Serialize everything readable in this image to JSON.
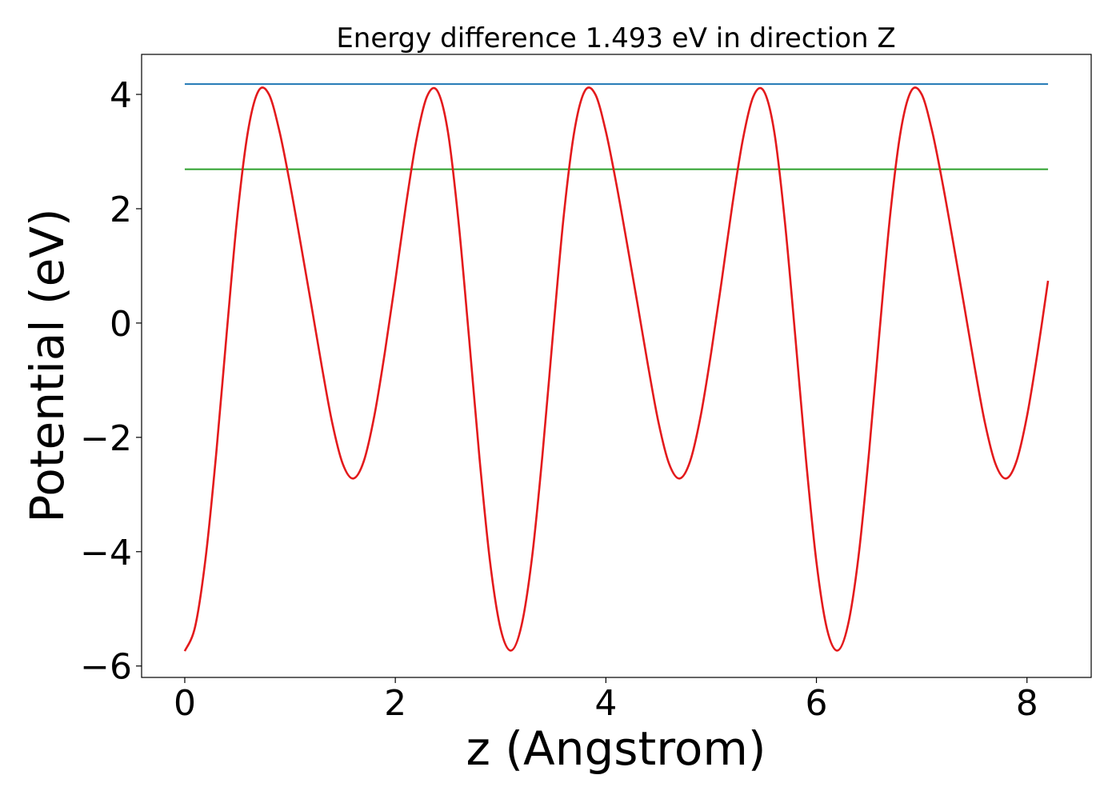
{
  "chart_data": {
    "type": "line",
    "title": "Energy difference 1.493 eV in direction Z",
    "xlabel": "z (Angstrom)",
    "ylabel": "Potential (eV)",
    "xlim": [
      -0.41,
      8.61
    ],
    "ylim": [
      -6.2,
      4.7
    ],
    "x_ticks": [
      0,
      2,
      4,
      6,
      8
    ],
    "x_tick_labels": [
      "0",
      "2",
      "4",
      "6",
      "8"
    ],
    "y_ticks": [
      4,
      2,
      0,
      -2,
      -4,
      -6
    ],
    "y_tick_labels": [
      "4",
      "2",
      "0",
      "−2",
      "−4",
      "−6"
    ],
    "grid": false,
    "legend": "none",
    "series": [
      {
        "style": "curve",
        "color": "#e31a1c",
        "x": [
          0.0,
          0.1,
          0.2,
          0.3,
          0.4,
          0.5,
          0.6,
          0.7,
          0.8,
          0.9,
          1.0,
          1.1,
          1.2,
          1.3,
          1.4,
          1.5,
          1.6,
          1.7,
          1.8,
          1.9,
          2.0,
          2.1,
          2.2,
          2.3,
          2.4,
          2.5,
          2.6,
          2.7,
          2.8,
          2.9,
          3.0,
          3.1,
          3.2,
          3.3,
          3.4,
          3.5,
          3.6,
          3.7,
          3.8,
          3.9,
          4.0,
          4.1,
          4.2,
          4.3,
          4.4,
          4.5,
          4.6,
          4.7,
          4.8,
          4.9,
          5.0,
          5.1,
          5.2,
          5.3,
          5.4,
          5.5,
          5.6,
          5.7,
          5.8,
          5.9,
          6.0,
          6.1,
          6.2,
          6.3,
          6.4,
          6.5,
          6.6,
          6.7,
          6.8,
          6.9,
          7.0,
          7.1,
          7.2,
          7.3,
          7.4,
          7.5,
          7.6,
          7.7,
          7.8,
          7.9,
          8.0,
          8.1,
          8.2
        ],
        "y": [
          -5.74,
          -5.3,
          -4.08,
          -2.26,
          -0.14,
          1.88,
          3.35,
          4.06,
          4.0,
          3.35,
          2.43,
          1.4,
          0.34,
          -0.74,
          -1.74,
          -2.46,
          -2.72,
          -2.42,
          -1.63,
          -0.52,
          0.74,
          2.05,
          3.2,
          3.96,
          4.06,
          3.34,
          1.78,
          -0.25,
          -2.37,
          -4.18,
          -5.35,
          -5.73,
          -5.28,
          -4.08,
          -2.26,
          -0.14,
          1.88,
          3.35,
          4.06,
          4.0,
          3.35,
          2.43,
          1.4,
          0.34,
          -0.74,
          -1.74,
          -2.46,
          -2.72,
          -2.42,
          -1.63,
          -0.52,
          0.74,
          2.05,
          3.2,
          3.96,
          4.06,
          3.34,
          1.78,
          -0.25,
          -2.37,
          -4.18,
          -5.35,
          -5.73,
          -5.28,
          -4.08,
          -2.26,
          -0.14,
          1.88,
          3.35,
          4.06,
          4.0,
          3.35,
          2.43,
          1.4,
          0.34,
          -0.74,
          -1.74,
          -2.46,
          -2.72,
          -2.42,
          -1.63,
          -0.52,
          0.74
        ]
      },
      {
        "style": "horizontal",
        "color": "#1f77b4",
        "x": [
          0.0,
          8.2
        ],
        "y": [
          4.18,
          4.18
        ]
      },
      {
        "style": "horizontal",
        "color": "#2ca02c",
        "x": [
          0.0,
          8.2
        ],
        "y": [
          2.69,
          2.69
        ]
      }
    ]
  }
}
